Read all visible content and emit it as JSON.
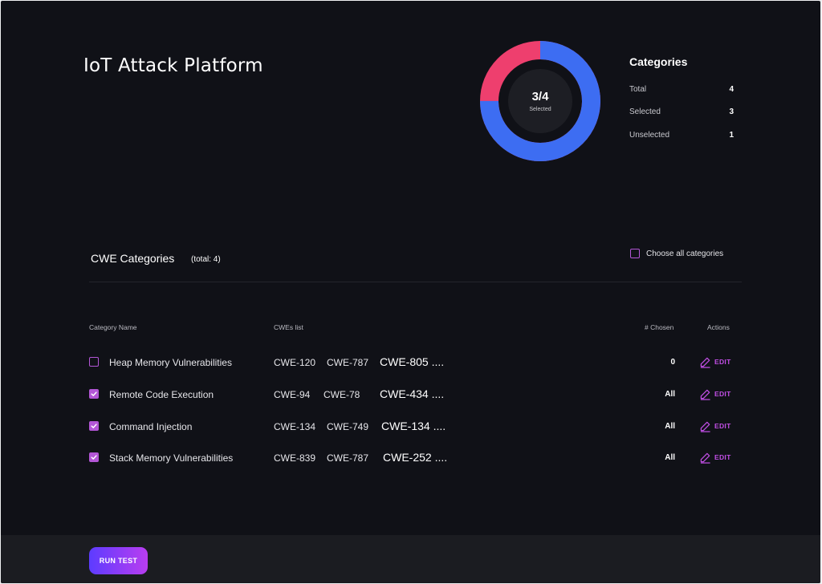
{
  "app": {
    "title": "IoT Attack Platform"
  },
  "donut": {
    "value_label": "3/4",
    "caption": "Selected",
    "selected_fraction": 0.75,
    "colors": {
      "selected": "#3d6df2",
      "unselected": "#ee3f6e",
      "inner": "#1d1e24"
    }
  },
  "categories_summary": {
    "title": "Categories",
    "stats": [
      {
        "label": "Total",
        "value": "4"
      },
      {
        "label": "Selected",
        "value": "3"
      },
      {
        "label": "Unselected",
        "value": "1"
      }
    ]
  },
  "cwe_section": {
    "title": "CWE Categories",
    "total_label": "(total: 4)",
    "choose_all_label": "Choose all categories",
    "choose_all_checked": false
  },
  "table": {
    "headers": {
      "name": "Category Name",
      "cwes": "CWEs list",
      "chosen": "# Chosen",
      "actions": "Actions"
    },
    "rows": [
      {
        "checked": false,
        "name": "Heap Memory Vulnerabilities",
        "cwes": [
          "CWE-120",
          "CWE-787",
          "CWE-805 ...."
        ],
        "chosen": "0",
        "action": "EDIT"
      },
      {
        "checked": true,
        "name": "Remote Code Execution",
        "cwes": [
          "CWE-94",
          "CWE-78",
          "CWE-434 ...."
        ],
        "chosen": "All",
        "action": "EDIT"
      },
      {
        "checked": true,
        "name": "Command Injection",
        "cwes": [
          "CWE-134",
          "CWE-749",
          "CWE-134 ...."
        ],
        "chosen": "All",
        "action": "EDIT"
      },
      {
        "checked": true,
        "name": "Stack Memory Vulnerabilities",
        "cwes": [
          "CWE-839",
          "CWE-787",
          "CWE-252 ...."
        ],
        "chosen": "All",
        "action": "EDIT"
      }
    ]
  },
  "footer": {
    "run_label": "RUN TEST"
  },
  "theme": {
    "accent": "#b356d6",
    "background": "#101117",
    "footer_background": "#1b1c21"
  }
}
